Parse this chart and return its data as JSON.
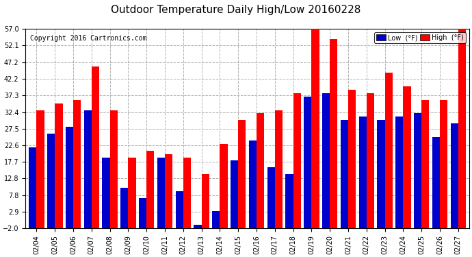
{
  "title": "Outdoor Temperature Daily High/Low 20160228",
  "copyright": "Copyright 2016 Cartronics.com",
  "dates": [
    "02/04",
    "02/05",
    "02/06",
    "02/07",
    "02/08",
    "02/09",
    "02/10",
    "02/11",
    "02/12",
    "02/13",
    "02/14",
    "02/15",
    "02/16",
    "02/17",
    "02/18",
    "02/19",
    "02/20",
    "02/21",
    "02/22",
    "02/23",
    "02/24",
    "02/25",
    "02/26",
    "02/27"
  ],
  "high": [
    33.0,
    35.0,
    36.0,
    46.0,
    33.0,
    19.0,
    21.0,
    20.0,
    19.0,
    14.0,
    23.0,
    30.0,
    32.0,
    33.0,
    38.0,
    57.0,
    54.0,
    39.0,
    38.0,
    44.0,
    40.0,
    36.0,
    36.0,
    57.0
  ],
  "low": [
    22.0,
    26.0,
    28.0,
    33.0,
    19.0,
    10.0,
    7.0,
    19.0,
    9.0,
    -1.0,
    3.0,
    18.0,
    24.0,
    16.0,
    14.0,
    37.0,
    38.0,
    30.0,
    31.0,
    30.0,
    31.0,
    32.0,
    25.0,
    29.0
  ],
  "high_color": "#ff0000",
  "low_color": "#0000cc",
  "bg_color": "#ffffff",
  "grid_color": "#b0b0b0",
  "ylim_min": -2.0,
  "ylim_max": 57.0,
  "yticks": [
    -2.0,
    2.9,
    7.8,
    12.8,
    17.7,
    22.6,
    27.5,
    32.4,
    37.3,
    42.2,
    47.2,
    52.1,
    57.0
  ],
  "bar_width": 0.42,
  "legend_low_label": "Low  (°F)",
  "legend_high_label": "High  (°F)",
  "title_fontsize": 11,
  "copyright_fontsize": 7,
  "tick_fontsize": 7
}
